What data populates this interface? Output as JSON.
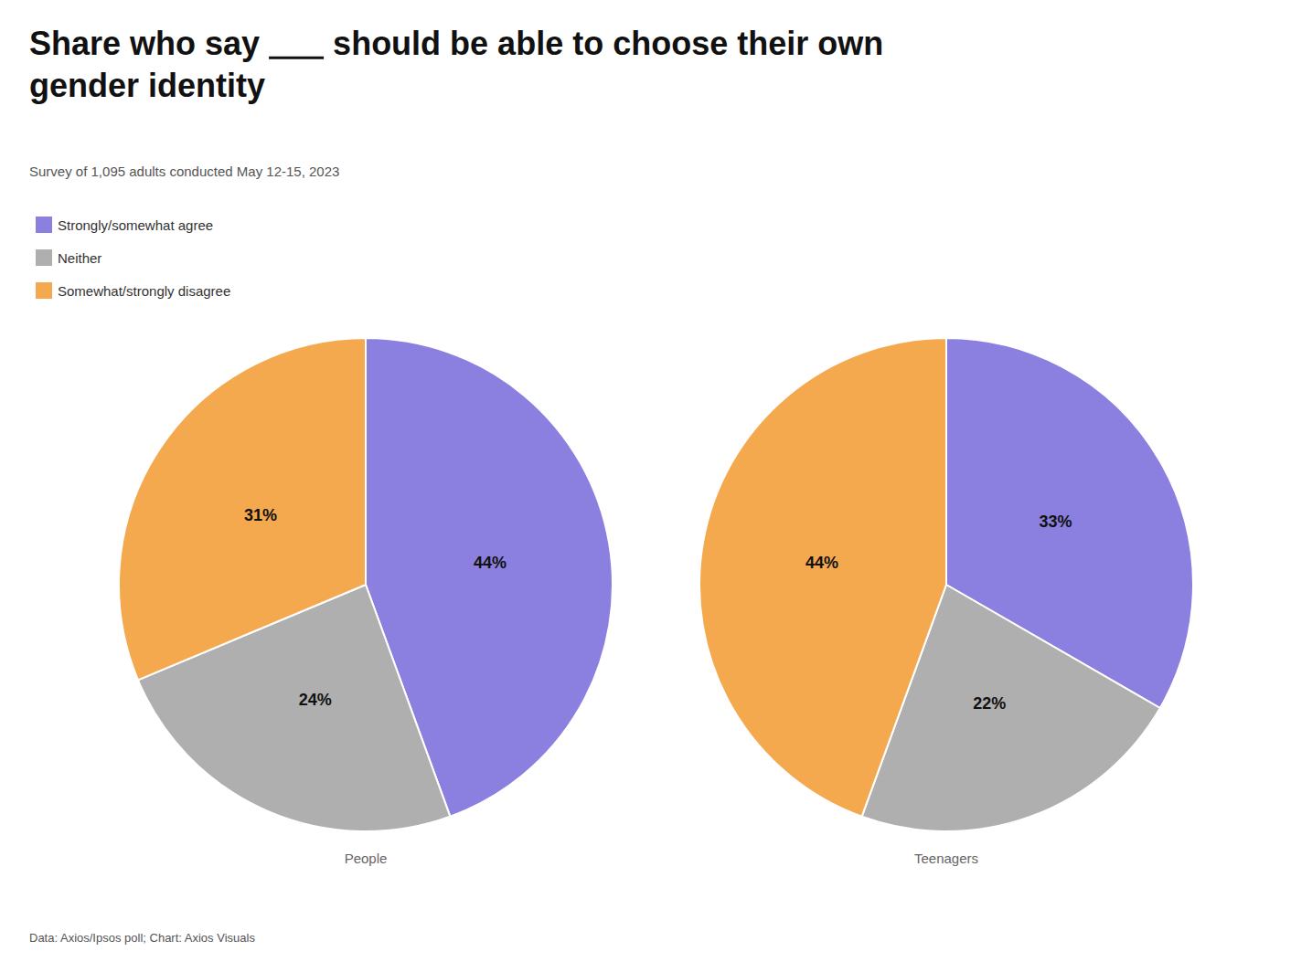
{
  "title": "Share who say        should be able to choose their own\ngender identity",
  "subtitle": "Survey of 1,095 adults conducted May 12-15, 2023",
  "footnote": "Data: Axios/Ipsos poll; Chart: Axios Visuals",
  "chart_data": [
    {
      "type": "pie",
      "title": "People",
      "categories": [
        "Strongly/somewhat agree",
        "Neither",
        "Somewhat/strongly disagree"
      ],
      "values": [
        44,
        24,
        31
      ],
      "value_labels": [
        "44%",
        "24%",
        "31%"
      ],
      "colors": [
        "#8B80E0",
        "#AFAFAF",
        "#F5A94E"
      ],
      "data_labels": true,
      "legend": "top-left"
    },
    {
      "type": "pie",
      "title": "Teenagers",
      "categories": [
        "Strongly/somewhat agree",
        "Neither",
        "Somewhat/strongly disagree"
      ],
      "values": [
        33,
        22,
        44
      ],
      "value_labels": [
        "33%",
        "22%",
        "44%"
      ],
      "colors": [
        "#8B80E0",
        "#AFAFAF",
        "#F5A94E"
      ],
      "data_labels": true,
      "legend": "top-left"
    }
  ]
}
